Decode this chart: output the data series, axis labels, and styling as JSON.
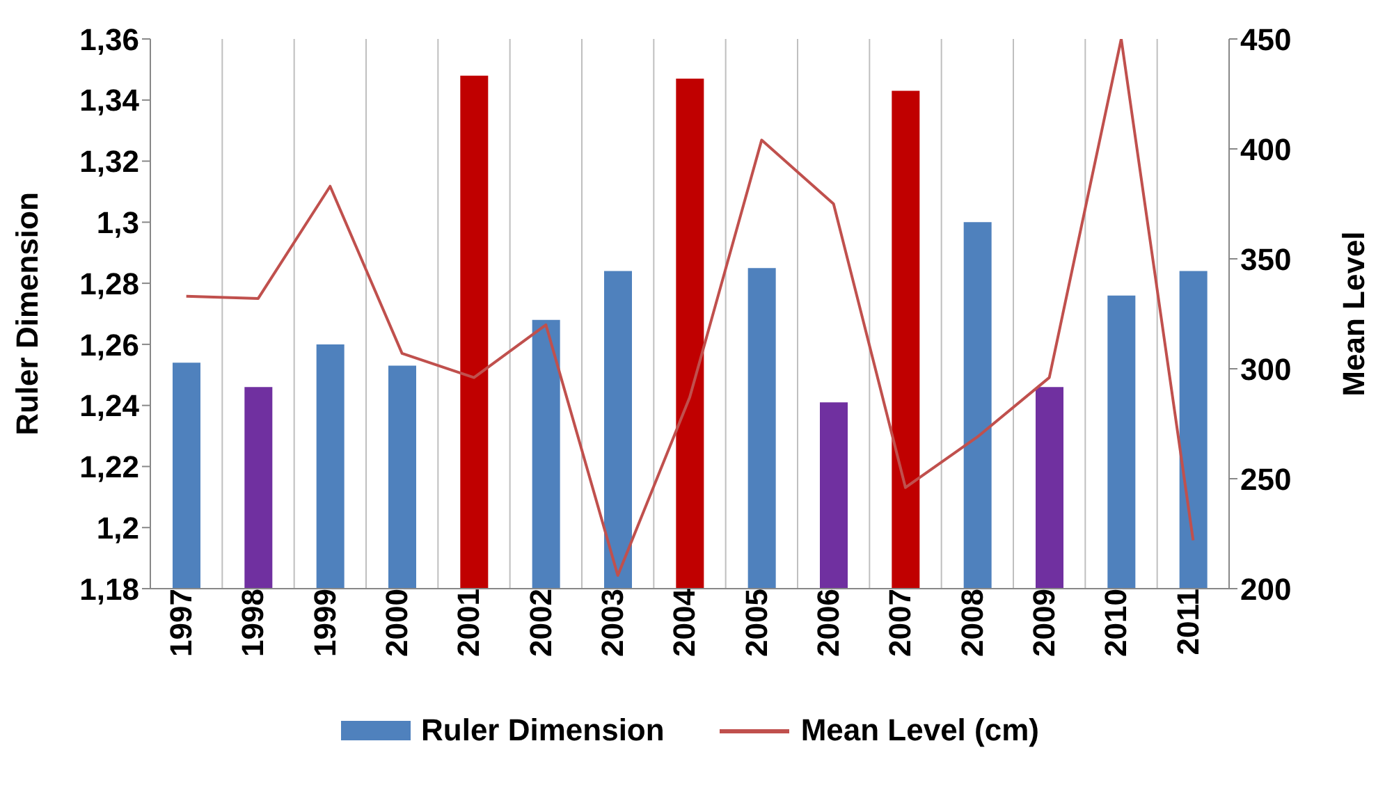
{
  "chart_data": {
    "type": "bar",
    "ylabel": "Ruler Dimension",
    "y2label": "Mean Level",
    "categories": [
      "1997",
      "1998",
      "1999",
      "2000",
      "2001",
      "2002",
      "2003",
      "2004",
      "2005",
      "2006",
      "2007",
      "2008",
      "2009",
      "2010",
      "2011"
    ],
    "series": [
      {
        "name": "Ruler Dimension",
        "color": "#4f81bd",
        "colors": [
          "#4f81bd",
          "#7030a0",
          "#4f81bd",
          "#4f81bd",
          "#c00000",
          "#4f81bd",
          "#4f81bd",
          "#c00000",
          "#4f81bd",
          "#7030a0",
          "#c00000",
          "#4f81bd",
          "#7030a0",
          "#4f81bd",
          "#4f81bd"
        ],
        "values": [
          1.254,
          1.246,
          1.26,
          1.253,
          1.348,
          1.268,
          1.284,
          1.347,
          1.285,
          1.241,
          1.343,
          1.3,
          1.246,
          1.276,
          1.284
        ]
      },
      {
        "name": "Mean Level (cm)",
        "type": "line",
        "axis": "y2",
        "color": "#c0504d",
        "values": [
          333,
          332,
          383,
          307,
          296,
          320,
          206,
          287,
          404,
          375,
          246,
          269,
          296,
          450,
          222
        ]
      }
    ],
    "ylim": [
      1.18,
      1.36
    ],
    "yticks": [
      {
        "value": 1.18,
        "label": "1,18"
      },
      {
        "value": 1.2,
        "label": "1,2"
      },
      {
        "value": 1.22,
        "label": "1,22"
      },
      {
        "value": 1.24,
        "label": "1,24"
      },
      {
        "value": 1.26,
        "label": "1,26"
      },
      {
        "value": 1.28,
        "label": "1,28"
      },
      {
        "value": 1.3,
        "label": "1,3"
      },
      {
        "value": 1.32,
        "label": "1,32"
      },
      {
        "value": 1.34,
        "label": "1,34"
      },
      {
        "value": 1.36,
        "label": "1,36"
      }
    ],
    "y2lim": [
      200,
      450
    ],
    "y2ticks": [
      200,
      250,
      300,
      350,
      400,
      450
    ],
    "grid": "x",
    "legend": "bottom",
    "marker": "none"
  }
}
